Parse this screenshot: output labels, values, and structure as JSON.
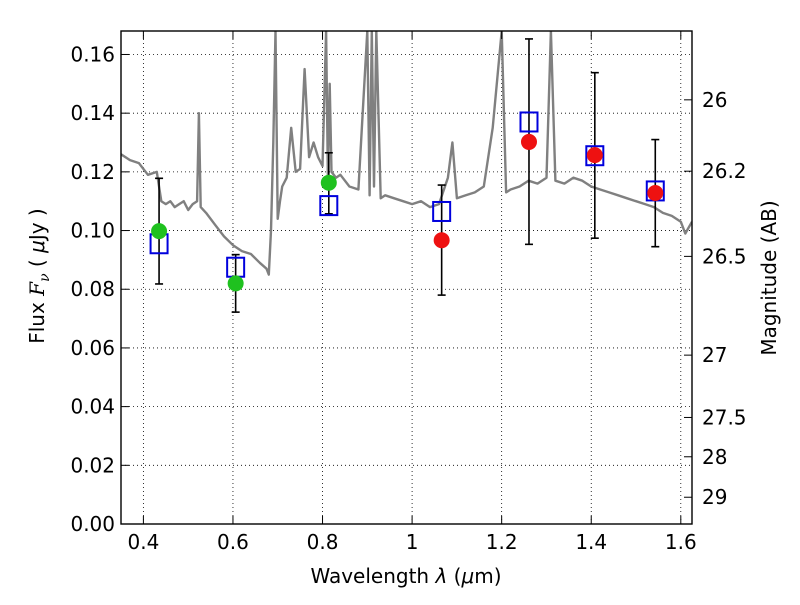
{
  "chart_data": {
    "type": "scatter",
    "xlabel_prefix": "Wavelength  ",
    "xlabel_symbol": "λ",
    "xlabel_suffix": " (",
    "xlabel_unit_symbol": "μ",
    "xlabel_unit_rest": "m)",
    "ylabel_prefix": "Flux  ",
    "ylabel_symbol": "F",
    "ylabel_subscript": "ν",
    "ylabel_unit_open": "  ( ",
    "ylabel_unit_symbol": "μ",
    "ylabel_unit_rest": "Jy )",
    "y2label": "Magnitude (AB)",
    "xlim": [
      0.35,
      1.625
    ],
    "ylim": [
      0.0,
      0.168
    ],
    "x_ticks": [
      0.4,
      0.6,
      0.8,
      1.0,
      1.2,
      1.4,
      1.6
    ],
    "x_tick_labels": [
      "0.4",
      "0.6",
      "0.8",
      "1",
      "1.2",
      "1.4",
      "1.6"
    ],
    "y_ticks": [
      0.0,
      0.02,
      0.04,
      0.06,
      0.08,
      0.1,
      0.12,
      0.14,
      0.16
    ],
    "y_tick_labels": [
      "0.00",
      "0.02",
      "0.04",
      "0.06",
      "0.08",
      "0.10",
      "0.12",
      "0.14",
      "0.16"
    ],
    "y2_ticks": [
      {
        "mag": 26,
        "label": "26"
      },
      {
        "mag": 26.2,
        "label": "26.2"
      },
      {
        "mag": 26.5,
        "label": "26.5"
      },
      {
        "mag": 27,
        "label": "27"
      },
      {
        "mag": 27.5,
        "label": "27.5"
      },
      {
        "mag": 28,
        "label": "28"
      },
      {
        "mag": 29,
        "label": "29"
      }
    ],
    "grid": true,
    "colors": {
      "template": "#808080",
      "green": "#1fc11f",
      "red": "#ee1111",
      "model": "#0000dd",
      "errorbar": "#000000"
    },
    "series": [
      {
        "marker": "circle",
        "color": "green",
        "points": [
          {
            "x": 0.435,
            "y": 0.0998,
            "err_lo": 0.0818,
            "err_hi": 0.1178
          },
          {
            "x": 0.606,
            "y": 0.082,
            "err_lo": 0.0722,
            "err_hi": 0.0918
          },
          {
            "x": 0.814,
            "y": 0.1163,
            "err_lo": 0.1057,
            "err_hi": 0.1265
          }
        ]
      },
      {
        "marker": "circle",
        "color": "red",
        "points": [
          {
            "x": 1.066,
            "y": 0.0967,
            "err_lo": 0.078,
            "err_hi": 0.1155
          },
          {
            "x": 1.261,
            "y": 0.1302,
            "err_lo": 0.0953,
            "err_hi": 0.1653
          },
          {
            "x": 1.408,
            "y": 0.1257,
            "err_lo": 0.0974,
            "err_hi": 0.1538
          },
          {
            "x": 1.543,
            "y": 0.1128,
            "err_lo": 0.0945,
            "err_hi": 0.131
          }
        ]
      },
      {
        "marker": "square-open",
        "color": "model",
        "points": [
          {
            "x": 0.435,
            "y": 0.0955
          },
          {
            "x": 0.606,
            "y": 0.0875
          },
          {
            "x": 0.814,
            "y": 0.1085
          },
          {
            "x": 1.066,
            "y": 0.1065
          },
          {
            "x": 1.261,
            "y": 0.137
          },
          {
            "x": 1.408,
            "y": 0.1255
          },
          {
            "x": 1.543,
            "y": 0.1135
          }
        ]
      },
      {
        "marker": "line",
        "color": "template",
        "x": [
          0.35,
          0.37,
          0.39,
          0.41,
          0.43,
          0.44,
          0.45,
          0.46,
          0.47,
          0.48,
          0.49,
          0.5,
          0.51,
          0.52,
          0.524,
          0.528,
          0.54,
          0.56,
          0.58,
          0.6,
          0.62,
          0.64,
          0.66,
          0.675,
          0.68,
          0.685,
          0.69,
          0.695,
          0.7,
          0.705,
          0.71,
          0.72,
          0.73,
          0.74,
          0.75,
          0.76,
          0.77,
          0.78,
          0.79,
          0.8,
          0.808,
          0.812,
          0.816,
          0.82,
          0.83,
          0.84,
          0.86,
          0.88,
          0.9,
          0.905,
          0.91,
          0.915,
          0.92,
          0.93,
          0.94,
          0.96,
          0.98,
          1.0,
          1.02,
          1.04,
          1.06,
          1.08,
          1.09,
          1.1,
          1.12,
          1.14,
          1.16,
          1.18,
          1.2,
          1.21,
          1.22,
          1.24,
          1.26,
          1.28,
          1.3,
          1.31,
          1.32,
          1.34,
          1.36,
          1.38,
          1.4,
          1.42,
          1.44,
          1.46,
          1.48,
          1.5,
          1.52,
          1.54,
          1.56,
          1.58,
          1.6,
          1.61,
          1.625
        ],
        "y": [
          0.126,
          0.124,
          0.123,
          0.119,
          0.12,
          0.11,
          0.109,
          0.11,
          0.108,
          0.109,
          0.11,
          0.107,
          0.109,
          0.11,
          0.14,
          0.108,
          0.106,
          0.102,
          0.098,
          0.095,
          0.093,
          0.092,
          0.089,
          0.087,
          0.085,
          0.1,
          0.13,
          0.168,
          0.104,
          0.11,
          0.115,
          0.118,
          0.135,
          0.12,
          0.121,
          0.155,
          0.125,
          0.13,
          0.125,
          0.122,
          0.168,
          0.118,
          0.15,
          0.12,
          0.118,
          0.119,
          0.115,
          0.114,
          0.168,
          0.112,
          0.168,
          0.115,
          0.168,
          0.111,
          0.112,
          0.111,
          0.11,
          0.109,
          0.11,
          0.108,
          0.109,
          0.118,
          0.13,
          0.111,
          0.112,
          0.113,
          0.115,
          0.135,
          0.168,
          0.113,
          0.114,
          0.115,
          0.117,
          0.116,
          0.118,
          0.168,
          0.117,
          0.116,
          0.118,
          0.117,
          0.115,
          0.114,
          0.113,
          0.112,
          0.111,
          0.11,
          0.109,
          0.108,
          0.106,
          0.105,
          0.103,
          0.099,
          0.103
        ]
      }
    ]
  }
}
